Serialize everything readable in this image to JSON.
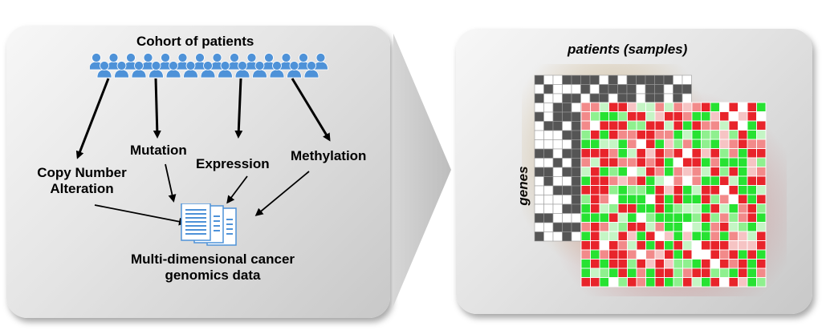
{
  "left": {
    "cohort_title": "Cohort of patients",
    "copy_number": "Copy Number\nAlteration",
    "mutation": "Mutation",
    "expression": "Expression",
    "methylation": "Methylation",
    "result": "Multi-dimensional cancer\ngenomics data"
  },
  "right": {
    "columns_label": "patients (samples)",
    "rows_label": "genes"
  },
  "icons": {
    "people": "people-icon",
    "documents": "documents-icon",
    "arrow": "chevron-arrow-icon"
  },
  "colors": {
    "people": "#4e92d8",
    "up": "#e8242b",
    "down": "#27e232",
    "binary_on": "#555555"
  }
}
